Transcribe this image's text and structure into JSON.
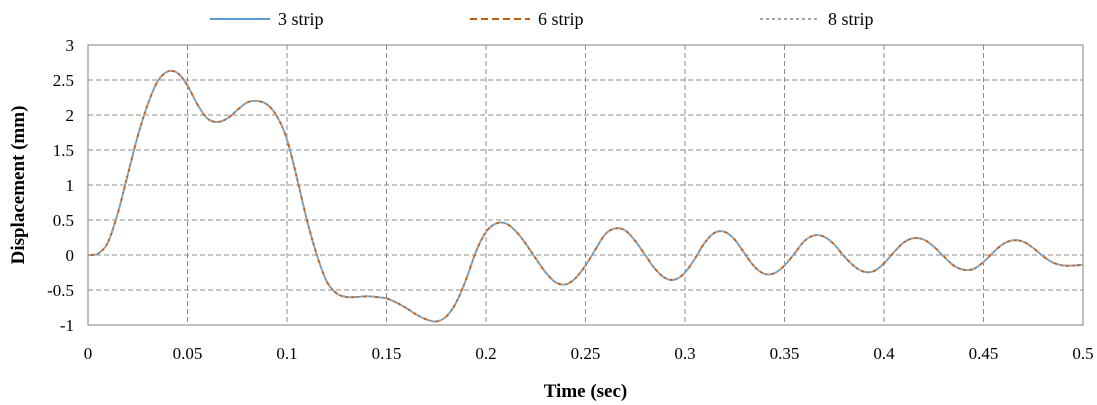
{
  "chart_data": {
    "type": "line",
    "xlabel": "Time (sec)",
    "ylabel": "Displacement (mm)",
    "xlim": [
      0,
      0.5
    ],
    "ylim": [
      -1,
      3
    ],
    "x_ticks": [
      "0",
      "0.05",
      "0.1",
      "0.15",
      "0.2",
      "0.25",
      "0.3",
      "0.35",
      "0.4",
      "0.45",
      "0.5"
    ],
    "y_ticks": [
      "3",
      "2.5",
      "2",
      "1.5",
      "1",
      "0.5",
      "0",
      "-0.5",
      "-1"
    ],
    "grid": true,
    "legend_position": "top",
    "x": [
      0,
      0.005,
      0.01,
      0.015,
      0.02,
      0.025,
      0.03,
      0.035,
      0.04,
      0.045,
      0.05,
      0.055,
      0.06,
      0.065,
      0.07,
      0.075,
      0.08,
      0.085,
      0.09,
      0.095,
      0.1,
      0.105,
      0.11,
      0.115,
      0.12,
      0.125,
      0.13,
      0.135,
      0.14,
      0.145,
      0.15,
      0.155,
      0.16,
      0.165,
      0.17,
      0.175,
      0.18,
      0.185,
      0.19,
      0.195,
      0.2,
      0.205,
      0.21,
      0.215,
      0.22,
      0.225,
      0.23,
      0.235,
      0.24,
      0.245,
      0.25,
      0.255,
      0.26,
      0.265,
      0.27,
      0.275,
      0.28,
      0.285,
      0.29,
      0.295,
      0.3,
      0.305,
      0.31,
      0.315,
      0.32,
      0.325,
      0.33,
      0.335,
      0.34,
      0.345,
      0.35,
      0.355,
      0.36,
      0.365,
      0.37,
      0.375,
      0.38,
      0.385,
      0.39,
      0.395,
      0.4,
      0.405,
      0.41,
      0.415,
      0.42,
      0.425,
      0.43,
      0.435,
      0.44,
      0.445,
      0.45,
      0.455,
      0.46,
      0.465,
      0.47,
      0.475,
      0.48,
      0.485,
      0.49,
      0.495,
      0.5
    ],
    "series": [
      {
        "name": "3 strip",
        "color": "#5b9bd5",
        "dash": "solid",
        "y": [
          0,
          0.02,
          0.18,
          0.6,
          1.15,
          1.7,
          2.15,
          2.48,
          2.62,
          2.6,
          2.42,
          2.15,
          1.95,
          1.9,
          1.95,
          2.07,
          2.18,
          2.2,
          2.15,
          1.98,
          1.65,
          1.1,
          0.5,
          0.0,
          -0.38,
          -0.55,
          -0.6,
          -0.6,
          -0.59,
          -0.6,
          -0.62,
          -0.68,
          -0.76,
          -0.85,
          -0.92,
          -0.95,
          -0.88,
          -0.68,
          -0.35,
          0.05,
          0.33,
          0.45,
          0.45,
          0.34,
          0.16,
          -0.05,
          -0.25,
          -0.39,
          -0.42,
          -0.33,
          -0.15,
          0.08,
          0.3,
          0.38,
          0.35,
          0.2,
          -0.0,
          -0.2,
          -0.33,
          -0.35,
          -0.25,
          -0.05,
          0.18,
          0.32,
          0.33,
          0.22,
          0.02,
          -0.17,
          -0.27,
          -0.26,
          -0.15,
          0.02,
          0.2,
          0.28,
          0.26,
          0.15,
          -0.02,
          -0.16,
          -0.24,
          -0.23,
          -0.12,
          0.04,
          0.18,
          0.24,
          0.22,
          0.12,
          -0.02,
          -0.15,
          -0.21,
          -0.2,
          -0.1,
          0.04,
          0.16,
          0.21,
          0.19,
          0.1,
          -0.02,
          -0.11,
          -0.15,
          -0.15,
          -0.14
        ]
      },
      {
        "name": "6 strip",
        "color": "#c55a11",
        "dash": "long-dash",
        "y": [
          0,
          0.02,
          0.18,
          0.6,
          1.15,
          1.7,
          2.15,
          2.48,
          2.62,
          2.6,
          2.42,
          2.15,
          1.95,
          1.9,
          1.95,
          2.07,
          2.18,
          2.2,
          2.15,
          1.98,
          1.65,
          1.1,
          0.5,
          0.0,
          -0.38,
          -0.55,
          -0.6,
          -0.6,
          -0.59,
          -0.6,
          -0.62,
          -0.68,
          -0.76,
          -0.85,
          -0.92,
          -0.95,
          -0.88,
          -0.68,
          -0.35,
          0.05,
          0.33,
          0.45,
          0.45,
          0.34,
          0.16,
          -0.05,
          -0.25,
          -0.39,
          -0.42,
          -0.33,
          -0.15,
          0.08,
          0.3,
          0.38,
          0.35,
          0.2,
          -0.0,
          -0.2,
          -0.33,
          -0.35,
          -0.25,
          -0.05,
          0.18,
          0.32,
          0.33,
          0.22,
          0.02,
          -0.17,
          -0.27,
          -0.26,
          -0.15,
          0.02,
          0.2,
          0.28,
          0.26,
          0.15,
          -0.02,
          -0.16,
          -0.24,
          -0.23,
          -0.12,
          0.04,
          0.18,
          0.24,
          0.22,
          0.12,
          -0.02,
          -0.15,
          -0.21,
          -0.2,
          -0.1,
          0.04,
          0.16,
          0.21,
          0.19,
          0.1,
          -0.02,
          -0.11,
          -0.15,
          -0.15,
          -0.14
        ]
      },
      {
        "name": "8 strip",
        "color": "#a5a5a5",
        "dash": "short-dash",
        "y": [
          0,
          0.02,
          0.18,
          0.6,
          1.15,
          1.7,
          2.15,
          2.48,
          2.62,
          2.6,
          2.42,
          2.15,
          1.95,
          1.9,
          1.95,
          2.07,
          2.18,
          2.2,
          2.15,
          1.98,
          1.65,
          1.1,
          0.5,
          0.0,
          -0.38,
          -0.55,
          -0.6,
          -0.6,
          -0.59,
          -0.6,
          -0.62,
          -0.68,
          -0.76,
          -0.85,
          -0.92,
          -0.95,
          -0.88,
          -0.68,
          -0.35,
          0.05,
          0.33,
          0.45,
          0.45,
          0.34,
          0.16,
          -0.05,
          -0.25,
          -0.39,
          -0.42,
          -0.33,
          -0.15,
          0.08,
          0.3,
          0.38,
          0.35,
          0.2,
          -0.0,
          -0.2,
          -0.33,
          -0.35,
          -0.25,
          -0.05,
          0.18,
          0.32,
          0.33,
          0.22,
          0.02,
          -0.17,
          -0.27,
          -0.26,
          -0.15,
          0.02,
          0.2,
          0.28,
          0.26,
          0.15,
          -0.02,
          -0.16,
          -0.24,
          -0.23,
          -0.12,
          0.04,
          0.18,
          0.24,
          0.22,
          0.12,
          -0.02,
          -0.15,
          -0.21,
          -0.2,
          -0.1,
          0.04,
          0.16,
          0.21,
          0.19,
          0.1,
          -0.02,
          -0.11,
          -0.15,
          -0.15,
          -0.14
        ]
      }
    ]
  }
}
